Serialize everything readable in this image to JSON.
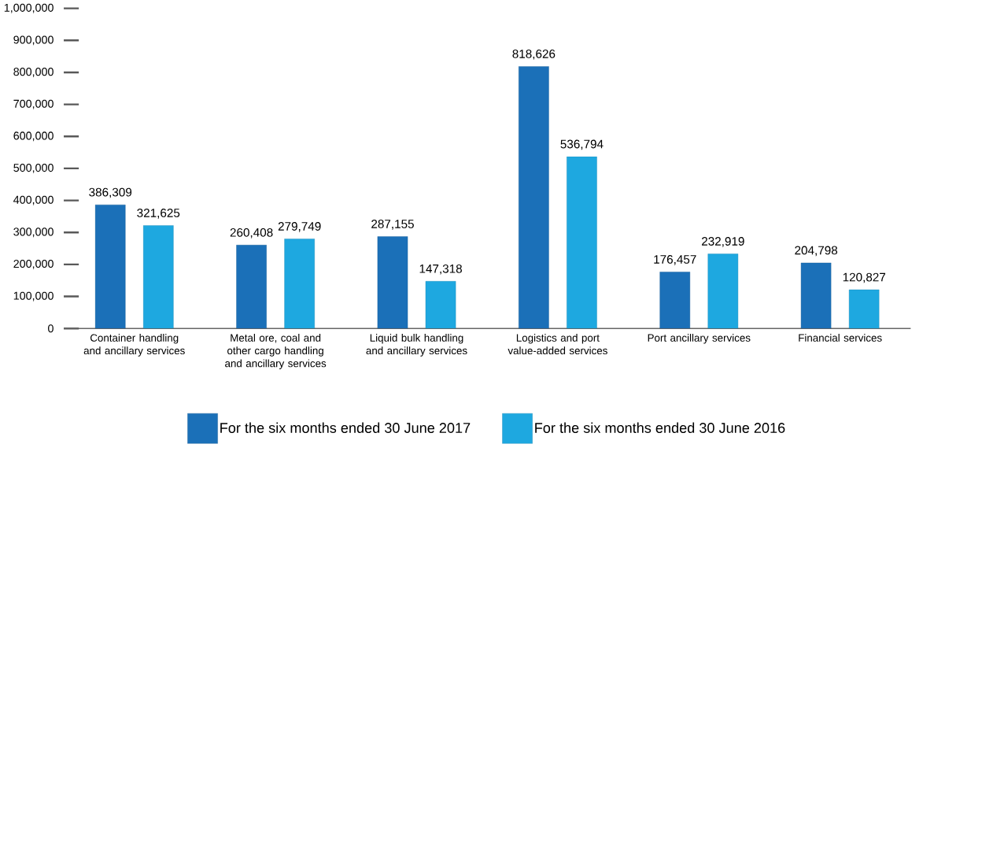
{
  "chart_data": {
    "type": "bar",
    "categories": [
      "Container handling and ancillary services",
      "Metal ore, coal and other cargo handling and ancillary services",
      "Liquid bulk handling and ancillary services",
      "Logistics and port value-added services",
      "Port ancillary services",
      "Financial services"
    ],
    "series": [
      {
        "name": "For the six months ended 30 June 2017",
        "color": "#1b70b8",
        "values": [
          386309,
          260408,
          287155,
          818626,
          176457,
          204798
        ],
        "value_labels": [
          "386,309",
          "260,408",
          "287,155",
          "818,626",
          "176,457",
          "204,798"
        ]
      },
      {
        "name": "For the six months ended 30 June 2016",
        "color": "#1ea8e0",
        "values": [
          321625,
          279749,
          147318,
          536794,
          232919,
          120827
        ],
        "value_labels": [
          "321,625",
          "279,749",
          "147,318",
          "536,794",
          "232,919",
          "120,827"
        ]
      }
    ],
    "ylim": [
      0,
      1000000
    ],
    "yticks": [
      0,
      {
        "value": 100000,
        "label": "100,000"
      },
      {
        "value": 200000,
        "label": "200,000"
      },
      {
        "value": 300000,
        "label": "300,000"
      },
      {
        "value": 400000,
        "label": "400,000"
      },
      {
        "value": 500000,
        "label": "500,000"
      },
      {
        "value": 600000,
        "label": "600,000"
      },
      {
        "value": 700000,
        "label": "700,000"
      },
      {
        "value": 800000,
        "label": "800,000"
      },
      {
        "value": 900000,
        "label": "900,000"
      },
      {
        "value": 1000000,
        "label": "1,000,000"
      }
    ],
    "legend": "bottom",
    "grid": false
  }
}
